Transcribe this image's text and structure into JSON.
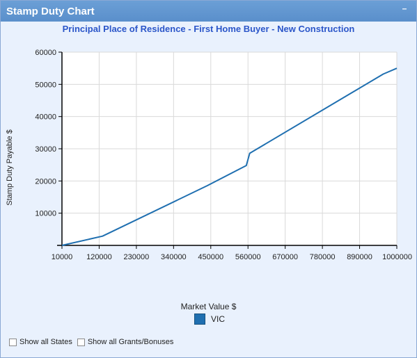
{
  "panel": {
    "title": "Stamp Duty Chart",
    "collapse_label": "–"
  },
  "options": {
    "show_all_states": "Show all States",
    "show_all_grants": "Show all Grants/Bonuses"
  },
  "colors": {
    "series": "#1f6fb0",
    "title": "#2b56c9",
    "header": "#5a8fcb"
  },
  "chart_data": {
    "type": "line",
    "title": "Principal Place of Residence - First Home Buyer - New Construction",
    "xlabel": "Market Value $",
    "ylabel": "Stamp Duty Payable $",
    "xlim": [
      10000,
      1000000
    ],
    "ylim": [
      0,
      60000
    ],
    "x_ticks": [
      "10000",
      "120000",
      "230000",
      "340000",
      "450000",
      "560000",
      "670000",
      "780000",
      "890000",
      "1000000"
    ],
    "y_ticks": [
      "10000",
      "20000",
      "30000",
      "40000",
      "50000",
      "60000"
    ],
    "grid": true,
    "legend_position": "bottom-center",
    "series": [
      {
        "name": "VIC",
        "color": "#1f6fb0",
        "x": [
          10000,
          130000,
          440000,
          555000,
          565000,
          960000,
          1000000
        ],
        "y": [
          0,
          2870,
          18570,
          24800,
          28600,
          53200,
          55000
        ]
      }
    ]
  }
}
